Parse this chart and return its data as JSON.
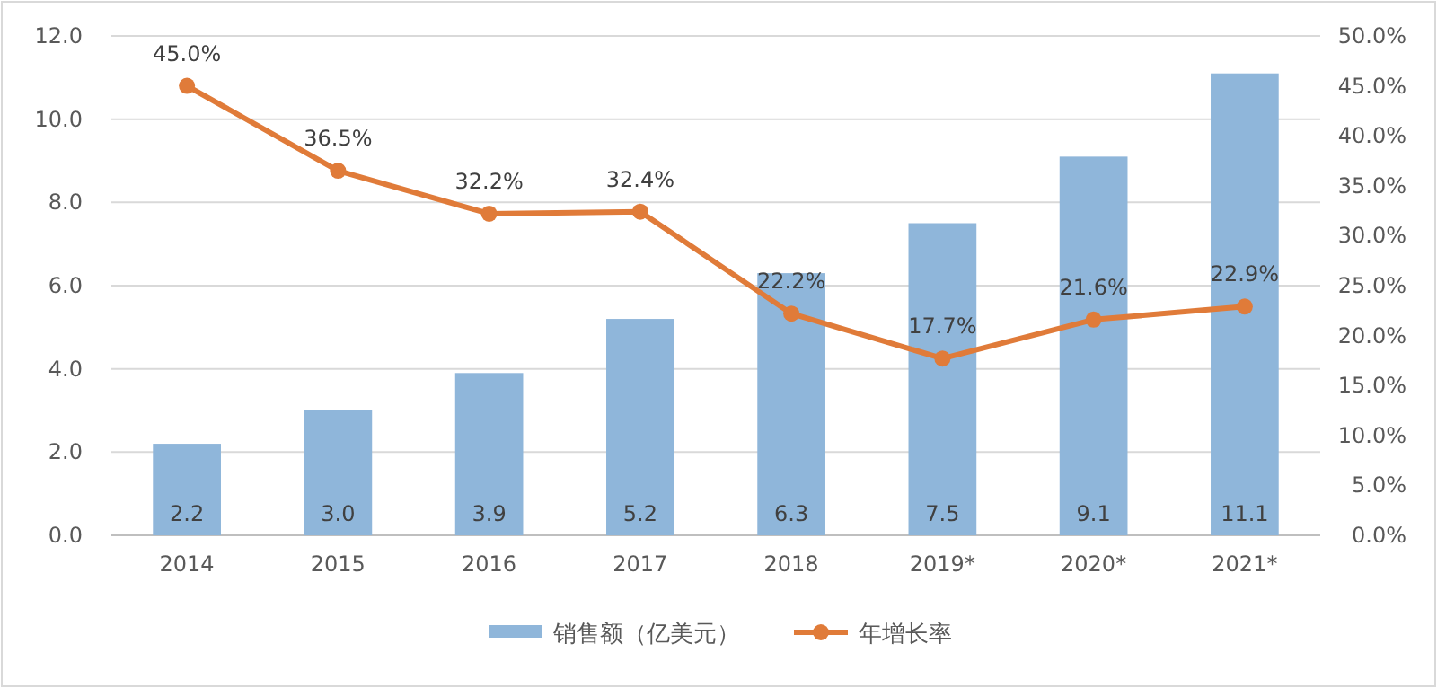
{
  "chart_data": {
    "type": "bar",
    "categories": [
      "2014",
      "2015",
      "2016",
      "2017",
      "2018",
      "2019*",
      "2020*",
      "2021*"
    ],
    "series": [
      {
        "name": "销售额（亿美元）",
        "color": "#8fb6da",
        "values": [
          2.2,
          3.0,
          3.9,
          5.2,
          6.3,
          7.5,
          9.1,
          11.1
        ],
        "value_labels": [
          "2.2",
          "3.0",
          "3.9",
          "5.2",
          "6.3",
          "7.5",
          "9.1",
          "11.1"
        ]
      },
      {
        "name": "年增长率",
        "type": "line",
        "axis": "y2",
        "color": "#e07b39",
        "marker": "circle",
        "values": [
          45.0,
          36.5,
          32.2,
          32.4,
          22.2,
          17.7,
          21.6,
          22.9
        ],
        "value_labels": [
          "45.0%",
          "36.5%",
          "32.2%",
          "32.4%",
          "22.2%",
          "17.7%",
          "21.6%",
          "22.9%"
        ]
      }
    ],
    "ylim": [
      0,
      12
    ],
    "yticks": [
      {
        "value": 0,
        "label": "0.0"
      },
      {
        "value": 2,
        "label": "2.0"
      },
      {
        "value": 4,
        "label": "4.0"
      },
      {
        "value": 6,
        "label": "6.0"
      },
      {
        "value": 8,
        "label": "8.0"
      },
      {
        "value": 10,
        "label": "10.0"
      },
      {
        "value": 12,
        "label": "12.0"
      }
    ],
    "y2lim": [
      0,
      50
    ],
    "y2ticks": [
      {
        "value": 0,
        "label": "0.0%"
      },
      {
        "value": 5,
        "label": "5.0%"
      },
      {
        "value": 10,
        "label": "10.0%"
      },
      {
        "value": 15,
        "label": "15.0%"
      },
      {
        "value": 20,
        "label": "20.0%"
      },
      {
        "value": 25,
        "label": "25.0%"
      },
      {
        "value": 30,
        "label": "30.0%"
      },
      {
        "value": 35,
        "label": "35.0%"
      },
      {
        "value": 40,
        "label": "40.0%"
      },
      {
        "value": 45,
        "label": "45.0%"
      },
      {
        "value": 50,
        "label": "50.0%"
      }
    ],
    "grid": "y",
    "legend": "bottom"
  }
}
